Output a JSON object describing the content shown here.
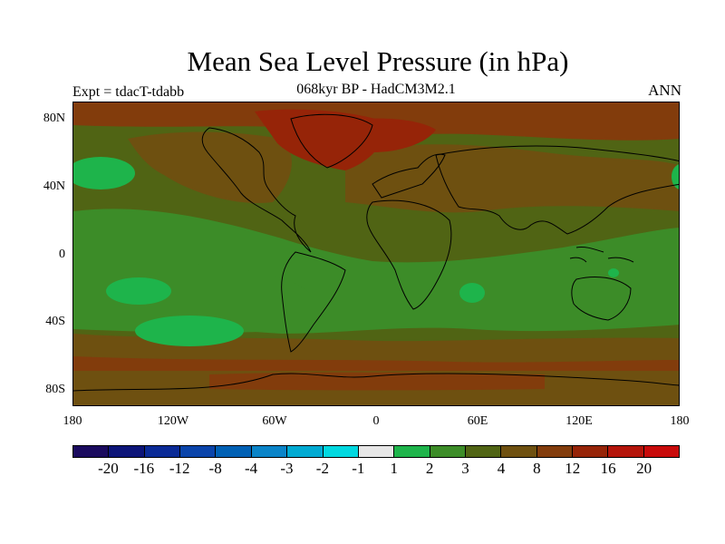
{
  "title": "Mean Sea Level Pressure (in hPa)",
  "subtitle": "068kyr BP - HadCM3M2.1",
  "left_label": "Expt = tdacT-tdabb",
  "right_label": "ANN",
  "lat_labels": [
    "80N",
    "40N",
    "0",
    "40S",
    "80S"
  ],
  "lon_labels": [
    "180",
    "120W",
    "60W",
    "0",
    "60E",
    "120E",
    "180"
  ],
  "colorbar": {
    "labels": [
      "-20",
      "-16",
      "-12",
      "-8",
      "-4",
      "-3",
      "-2",
      "-1",
      "1",
      "2",
      "3",
      "4",
      "8",
      "12",
      "16",
      "20"
    ],
    "colors": [
      "#1a0a5e",
      "#0c1478",
      "#0a2a96",
      "#0a44aa",
      "#0060b4",
      "#0a84c8",
      "#00aad2",
      "#00d8e0",
      "#e6e6e6",
      "#1eb44b",
      "#3c8c28",
      "#506414",
      "#6e5010",
      "#823c0c",
      "#962408",
      "#b4140a",
      "#c80a0a"
    ]
  },
  "map_colors": {
    "ocean_low": "#3c8c28",
    "mid": "#506414",
    "high": "#6e5010",
    "higher": "#823c0c",
    "highest": "#962408",
    "negative_patch": "#1eb44b",
    "coast": "#000000"
  }
}
